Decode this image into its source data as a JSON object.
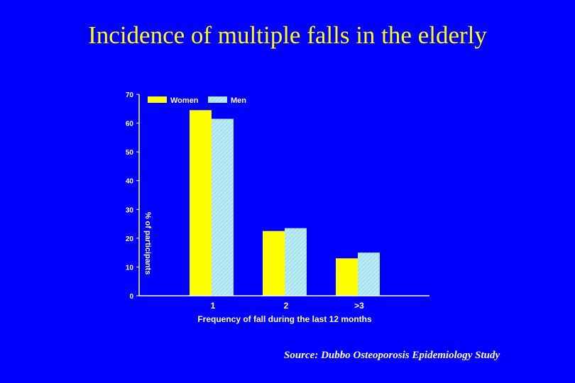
{
  "slide": {
    "title": "Incidence of multiple falls in the elderly",
    "source": "Source: Dubbo Osteoporosis Epidemiology Study"
  },
  "colors": {
    "background": "#0000ff",
    "title": "#ffff00",
    "axis_text": "#ffffff",
    "women": "#ffff00",
    "men": "#a8e4f0"
  },
  "chart_data": {
    "type": "bar",
    "categories": [
      "1",
      "2",
      ">3"
    ],
    "series": [
      {
        "name": "Women",
        "values": [
          64.5,
          22.5,
          13
        ]
      },
      {
        "name": "Men",
        "values": [
          61.5,
          23.5,
          15
        ]
      }
    ],
    "xlabel": "Frequency of fall during the last 12 months",
    "ylabel": "% of participants",
    "ylim": [
      0,
      70
    ],
    "yticks": [
      "0",
      "10",
      "20",
      "30",
      "40",
      "50",
      "60",
      "70"
    ],
    "grid": false,
    "legend": "top-left"
  }
}
